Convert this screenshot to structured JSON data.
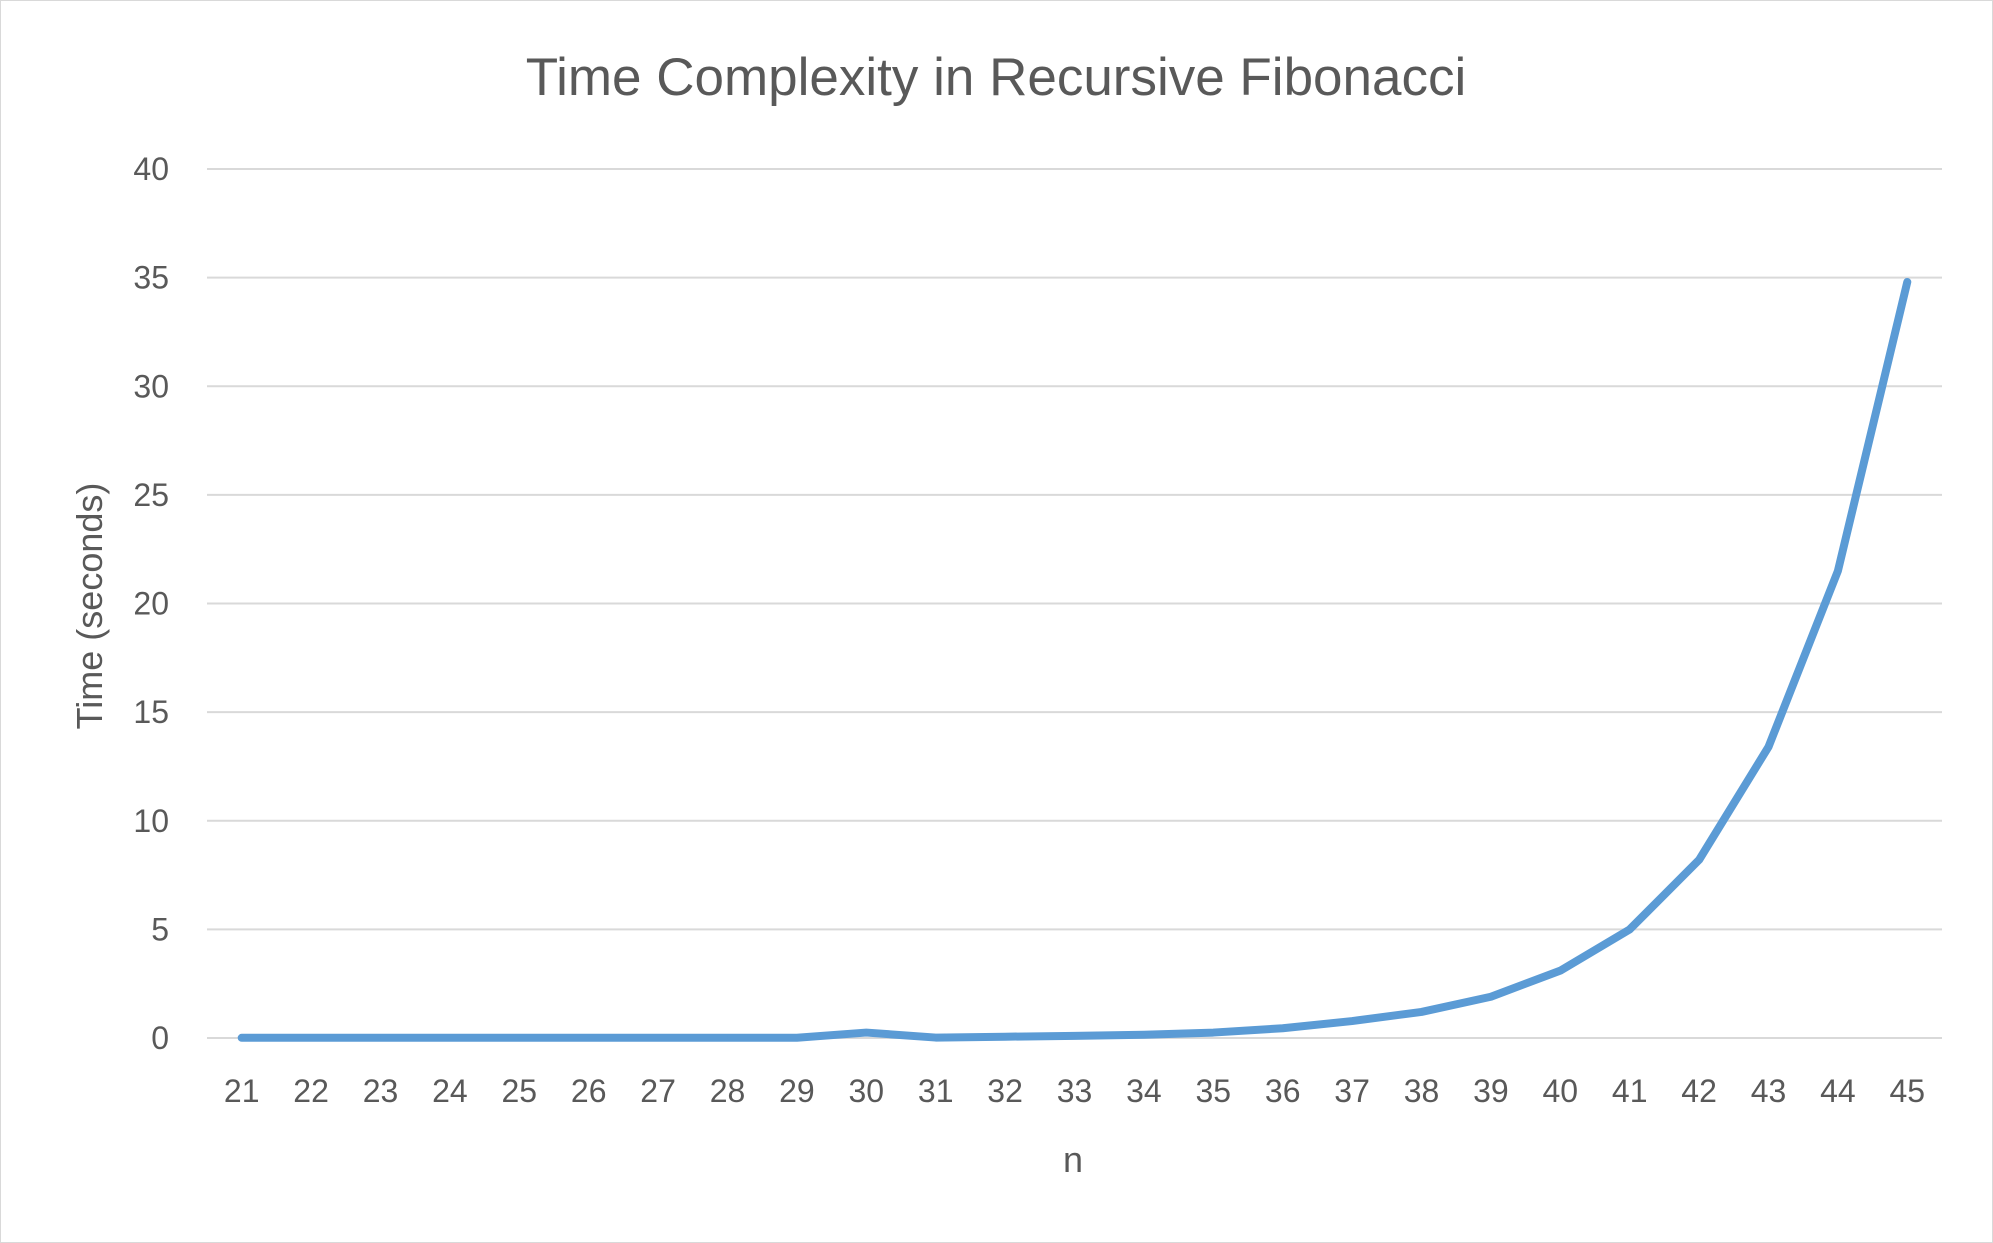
{
  "chart_data": {
    "type": "line",
    "title": "Time Complexity in Recursive Fibonacci",
    "xlabel": "n",
    "ylabel": "Time (seconds)",
    "categories": [
      "21",
      "22",
      "23",
      "24",
      "25",
      "26",
      "27",
      "28",
      "29",
      "30",
      "31",
      "32",
      "33",
      "34",
      "35",
      "36",
      "37",
      "38",
      "39",
      "40",
      "41",
      "42",
      "43",
      "44",
      "45"
    ],
    "series": [
      {
        "values": [
          0.01,
          0.01,
          0.01,
          0.01,
          0.01,
          0.01,
          0.01,
          0.01,
          0.01,
          0.25,
          0.02,
          0.06,
          0.1,
          0.15,
          0.25,
          0.45,
          0.78,
          1.2,
          1.9,
          3.1,
          5.0,
          8.2,
          13.4,
          21.5,
          34.8
        ],
        "color": "#5b9bd5"
      }
    ],
    "ylim": [
      0,
      40
    ],
    "yticks": [
      0,
      5,
      10,
      15,
      20,
      25,
      30,
      35,
      40
    ],
    "grid": true,
    "legend": "none"
  }
}
